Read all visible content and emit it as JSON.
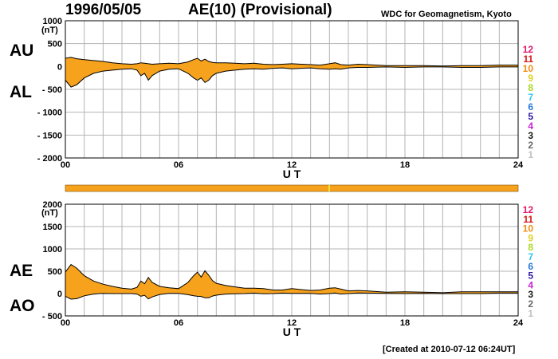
{
  "header": {
    "date": "1996/05/05",
    "title": "AE(10) (Provisional)",
    "organization": "WDC for Geomagnetism, Kyoto"
  },
  "footer": {
    "created": "[Created at 2010-07-12 06:24UT]"
  },
  "colors": {
    "fill": "#f7a21c",
    "line": "#000000",
    "grid": "#b4b4b4",
    "bar": "#f7a21c",
    "bar_mark": "#f0e030"
  },
  "legend": {
    "labels": [
      "12",
      "11",
      "10",
      "9",
      "8",
      "7",
      "6",
      "5",
      "4",
      "3",
      "2",
      "1"
    ],
    "colors": [
      "#e0186a",
      "#d81818",
      "#f08c10",
      "#e0d020",
      "#a8d820",
      "#30c8f0",
      "#2878d8",
      "#3018a0",
      "#c820d8",
      "#181818",
      "#686868",
      "#c0c0c0"
    ]
  },
  "chart_data": [
    {
      "type": "area",
      "panel": "AU/AL",
      "labels": {
        "upper": "AU",
        "lower": "AL",
        "unit": "(nT)"
      },
      "xlabel": "U T",
      "xticks": [
        "00",
        "06",
        "12",
        "18",
        "24"
      ],
      "xlim": [
        0,
        24
      ],
      "ylim": [
        -2000,
        1000
      ],
      "yticks": [
        "1000",
        "500",
        "0",
        "- 500",
        "- 1000",
        "- 1500",
        "- 2000"
      ],
      "ytick_values": [
        1000,
        500,
        0,
        -500,
        -1000,
        -1500,
        -2000
      ],
      "x": [
        0,
        0.3,
        0.6,
        1.0,
        1.5,
        2.0,
        2.5,
        3.0,
        3.5,
        3.8,
        4.0,
        4.2,
        4.4,
        4.6,
        5.0,
        5.5,
        6.0,
        6.5,
        6.8,
        7.0,
        7.2,
        7.4,
        7.6,
        7.8,
        8.0,
        8.5,
        9.0,
        9.5,
        10.0,
        10.5,
        11.0,
        11.5,
        12.0,
        12.5,
        13.0,
        13.5,
        14.0,
        14.3,
        14.6,
        15.0,
        15.5,
        16.0,
        17.0,
        18.0,
        19.0,
        20.0,
        21.0,
        22.0,
        23.0,
        24.0
      ],
      "series": [
        {
          "name": "AU",
          "values": [
            180,
            200,
            170,
            150,
            130,
            110,
            80,
            60,
            50,
            60,
            80,
            70,
            60,
            50,
            60,
            70,
            60,
            100,
            150,
            180,
            120,
            160,
            110,
            90,
            80,
            80,
            70,
            60,
            70,
            50,
            40,
            50,
            60,
            50,
            40,
            30,
            60,
            80,
            40,
            30,
            50,
            40,
            20,
            20,
            20,
            10,
            20,
            20,
            30,
            30
          ]
        },
        {
          "name": "AL",
          "values": [
            -300,
            -450,
            -400,
            -250,
            -150,
            -100,
            -80,
            -60,
            -50,
            -80,
            -200,
            -150,
            -300,
            -200,
            -100,
            -60,
            -50,
            -150,
            -250,
            -300,
            -250,
            -350,
            -300,
            -200,
            -150,
            -100,
            -80,
            -60,
            -50,
            -60,
            -40,
            -30,
            -50,
            -40,
            -30,
            -50,
            -60,
            -50,
            -60,
            -30,
            -20,
            -20,
            -10,
            -20,
            -10,
            -10,
            -20,
            -20,
            -10,
            -10
          ]
        }
      ]
    },
    {
      "type": "area",
      "panel": "AE/AO",
      "labels": {
        "upper": "AE",
        "lower": "AO",
        "unit": "(nT)"
      },
      "xlabel": "U T",
      "xticks": [
        "00",
        "06",
        "12",
        "18",
        "24"
      ],
      "xlim": [
        0,
        24
      ],
      "ylim": [
        -500,
        2000
      ],
      "yticks": [
        "2000",
        "1500",
        "1000",
        "500",
        "0",
        "- 500"
      ],
      "ytick_values": [
        2000,
        1500,
        1000,
        500,
        0,
        -500
      ],
      "x": [
        0,
        0.3,
        0.6,
        1.0,
        1.5,
        2.0,
        2.5,
        3.0,
        3.5,
        3.8,
        4.0,
        4.2,
        4.4,
        4.6,
        5.0,
        5.5,
        6.0,
        6.5,
        6.8,
        7.0,
        7.2,
        7.4,
        7.6,
        7.8,
        8.0,
        8.5,
        9.0,
        9.5,
        10.0,
        10.5,
        11.0,
        11.5,
        12.0,
        12.5,
        13.0,
        13.5,
        14.0,
        14.3,
        14.6,
        15.0,
        15.5,
        16.0,
        17.0,
        18.0,
        19.0,
        20.0,
        21.0,
        22.0,
        23.0,
        24.0
      ],
      "series": [
        {
          "name": "AE",
          "values": [
            480,
            650,
            570,
            400,
            280,
            210,
            160,
            120,
            100,
            140,
            280,
            220,
            360,
            250,
            160,
            130,
            110,
            250,
            400,
            480,
            370,
            510,
            410,
            290,
            230,
            180,
            150,
            120,
            120,
            110,
            80,
            80,
            110,
            90,
            70,
            80,
            120,
            130,
            100,
            60,
            70,
            60,
            30,
            40,
            30,
            20,
            40,
            40,
            40,
            40
          ]
        },
        {
          "name": "AO",
          "values": [
            -60,
            -125,
            -115,
            -50,
            -10,
            5,
            0,
            0,
            0,
            -10,
            -60,
            -40,
            -120,
            -75,
            -20,
            5,
            5,
            -25,
            -50,
            -60,
            -65,
            -95,
            -95,
            -55,
            -35,
            -10,
            -5,
            0,
            10,
            -5,
            0,
            10,
            5,
            5,
            5,
            -10,
            0,
            15,
            -10,
            0,
            15,
            10,
            5,
            0,
            5,
            0,
            0,
            0,
            10,
            10
          ]
        }
      ]
    }
  ]
}
